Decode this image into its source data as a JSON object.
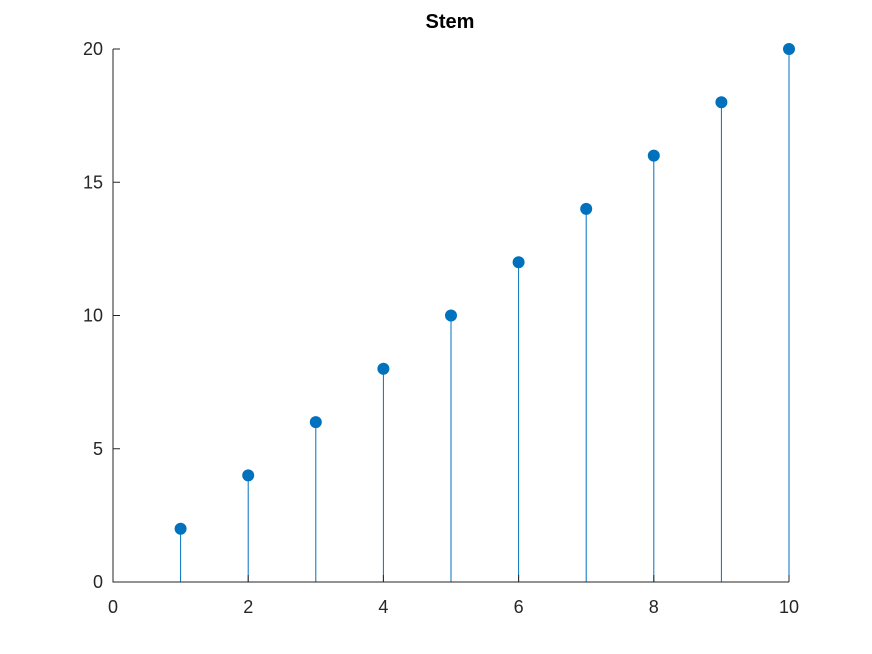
{
  "chart_data": {
    "type": "stem",
    "title": "Stem",
    "xlabel": "",
    "ylabel": "",
    "xlim": [
      0,
      10
    ],
    "ylim": [
      0,
      20
    ],
    "xticks": [
      0,
      2,
      4,
      6,
      8,
      10
    ],
    "yticks": [
      0,
      5,
      10,
      15,
      20
    ],
    "x": [
      1,
      2,
      3,
      4,
      5,
      6,
      7,
      8,
      9,
      10
    ],
    "y": [
      2,
      4,
      6,
      8,
      10,
      12,
      14,
      16,
      18,
      20
    ],
    "series_color": "#0072BD",
    "grid": false,
    "box": false
  }
}
